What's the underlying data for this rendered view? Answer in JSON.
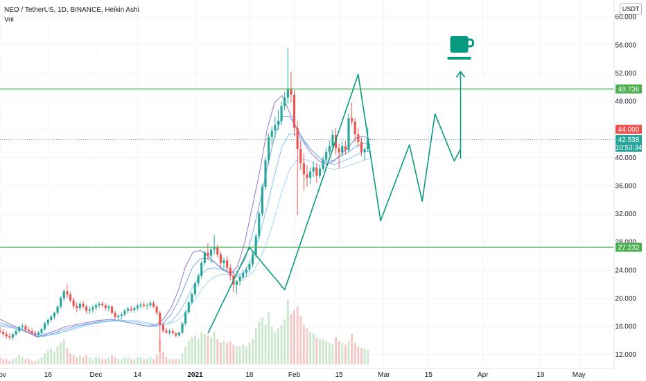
{
  "header": {
    "title": "NEO / TetherUS, 1D, BINANCE, Heikin Ashi",
    "indicator": "Vol",
    "currency": "USDT"
  },
  "price_tags": {
    "upper_level": "49.736",
    "lower_level": "27.232",
    "prev_close": "44.000",
    "last_price": "42.538",
    "countdown": "10:53:34"
  },
  "colors": {
    "up": "#26a69a",
    "down": "#ef5350",
    "level_line": "#4caf50",
    "pattern": "#089981",
    "ma": [
      "#7e57c2",
      "#5c8ee6",
      "#64b5f6",
      "#90caf9"
    ]
  },
  "chart_data": {
    "type": "line",
    "ylim": [
      10,
      61
    ],
    "y_ticks": [
      12,
      16,
      20,
      24,
      28,
      32,
      36,
      40,
      44,
      48,
      52,
      56,
      60
    ],
    "y_tick_labels": [
      "12.000",
      "16.000",
      "20.000",
      "24.000",
      "28.000",
      "32.000",
      "36.000",
      "40.000",
      "44.000",
      "48.000",
      "52.000",
      "56.000",
      "60.000"
    ],
    "x_tick_labels": [
      "Nov",
      "16",
      "Dec",
      "14",
      "2021",
      "18",
      "Feb",
      "15",
      "Mar",
      "15",
      "Apr",
      "19",
      "May"
    ],
    "x_tick_days": [
      0,
      15,
      30,
      43,
      61,
      78,
      92,
      106,
      120,
      134,
      151,
      169,
      181
    ],
    "x_day_range": [
      0,
      192
    ],
    "horizontal_levels": [
      49.736,
      27.232
    ],
    "current_price": 42.538,
    "pattern_line": [
      {
        "day": 65,
        "value": 15.0
      },
      {
        "day": 78,
        "value": 27.2
      },
      {
        "day": 89,
        "value": 21.2
      },
      {
        "day": 112,
        "value": 51.8
      },
      {
        "day": 119,
        "value": 31.0
      },
      {
        "day": 128,
        "value": 41.8
      },
      {
        "day": 132,
        "value": 33.8
      },
      {
        "day": 136,
        "value": 46.2
      },
      {
        "day": 142,
        "value": 39.5
      },
      {
        "day": 144,
        "value": 41.2
      }
    ],
    "target_arrow": {
      "day": 144,
      "from": 39.8,
      "to": 52.2
    },
    "ohlc": [
      [
        15.4,
        15.9,
        14.9,
        15.2
      ],
      [
        15.2,
        15.6,
        14.6,
        14.9
      ],
      [
        14.9,
        15.3,
        14.3,
        14.6
      ],
      [
        14.6,
        15.0,
        14.1,
        14.4
      ],
      [
        14.4,
        15.1,
        14.0,
        14.9
      ],
      [
        14.9,
        15.6,
        14.6,
        15.3
      ],
      [
        15.3,
        16.1,
        15.0,
        15.9
      ],
      [
        15.9,
        16.4,
        15.5,
        16.0
      ],
      [
        16.0,
        16.3,
        15.2,
        15.5
      ],
      [
        15.5,
        15.9,
        15.0,
        15.3
      ],
      [
        15.3,
        15.7,
        14.8,
        15.0
      ],
      [
        15.0,
        15.4,
        14.5,
        14.8
      ],
      [
        14.8,
        15.3,
        14.4,
        15.1
      ],
      [
        15.1,
        15.8,
        14.8,
        15.6
      ],
      [
        15.6,
        16.6,
        15.3,
        16.4
      ],
      [
        16.4,
        17.1,
        16.0,
        16.9
      ],
      [
        16.9,
        17.6,
        16.6,
        17.4
      ],
      [
        17.4,
        18.1,
        17.0,
        17.9
      ],
      [
        17.9,
        19.0,
        17.6,
        18.8
      ],
      [
        18.8,
        20.3,
        18.5,
        20.0
      ],
      [
        20.0,
        21.3,
        19.6,
        21.0
      ],
      [
        21.0,
        21.9,
        20.0,
        20.5
      ],
      [
        20.5,
        20.9,
        19.4,
        19.7
      ],
      [
        19.7,
        20.1,
        18.5,
        18.9
      ],
      [
        18.9,
        19.4,
        18.0,
        18.6
      ],
      [
        18.6,
        19.5,
        18.2,
        19.2
      ],
      [
        19.2,
        19.6,
        18.5,
        18.8
      ],
      [
        18.8,
        19.1,
        17.8,
        18.2
      ],
      [
        18.2,
        18.8,
        17.7,
        18.4
      ],
      [
        18.4,
        19.0,
        17.9,
        18.7
      ],
      [
        18.7,
        19.3,
        18.3,
        19.0
      ],
      [
        19.0,
        19.5,
        18.6,
        19.2
      ],
      [
        19.2,
        19.6,
        18.7,
        19.0
      ],
      [
        19.0,
        19.3,
        18.2,
        18.6
      ],
      [
        18.6,
        19.1,
        18.1,
        18.8
      ],
      [
        18.8,
        19.0,
        17.6,
        17.9
      ],
      [
        17.9,
        18.2,
        17.0,
        17.3
      ],
      [
        17.3,
        17.8,
        16.8,
        17.5
      ],
      [
        17.5,
        18.0,
        17.0,
        17.7
      ],
      [
        17.7,
        18.5,
        17.4,
        18.2
      ],
      [
        18.2,
        18.8,
        17.8,
        18.5
      ],
      [
        18.5,
        18.9,
        18.0,
        18.3
      ],
      [
        18.3,
        18.8,
        17.9,
        18.6
      ],
      [
        18.6,
        19.2,
        18.3,
        18.9
      ],
      [
        18.9,
        19.4,
        18.5,
        19.1
      ],
      [
        19.1,
        19.5,
        18.6,
        18.9
      ],
      [
        18.9,
        19.3,
        18.4,
        19.0
      ],
      [
        19.0,
        19.6,
        18.7,
        19.3
      ],
      [
        19.3,
        19.6,
        18.6,
        18.8
      ],
      [
        18.8,
        19.0,
        17.6,
        17.9
      ],
      [
        17.9,
        18.2,
        12.4,
        16.2
      ],
      [
        16.2,
        16.5,
        15.0,
        15.4
      ],
      [
        15.4,
        15.8,
        14.9,
        15.1
      ],
      [
        15.1,
        15.6,
        14.8,
        15.3
      ],
      [
        15.3,
        15.7,
        14.9,
        15.0
      ],
      [
        15.0,
        15.2,
        14.4,
        14.7
      ],
      [
        14.7,
        15.3,
        14.5,
        15.1
      ],
      [
        15.1,
        16.6,
        14.9,
        16.4
      ],
      [
        16.4,
        18.3,
        16.1,
        18.0
      ],
      [
        18.0,
        19.6,
        17.7,
        19.4
      ],
      [
        19.4,
        20.8,
        19.1,
        20.6
      ],
      [
        20.6,
        22.3,
        20.3,
        22.1
      ],
      [
        22.1,
        23.5,
        21.6,
        23.2
      ],
      [
        23.2,
        25.3,
        22.8,
        25.0
      ],
      [
        25.0,
        26.8,
        24.6,
        26.5
      ],
      [
        26.5,
        27.8,
        25.4,
        26.0
      ],
      [
        26.0,
        27.3,
        25.0,
        26.9
      ],
      [
        26.9,
        29.0,
        26.2,
        27.2
      ],
      [
        27.2,
        27.6,
        25.8,
        26.2
      ],
      [
        26.2,
        26.6,
        24.4,
        25.0
      ],
      [
        25.0,
        25.8,
        24.0,
        25.4
      ],
      [
        25.4,
        26.0,
        23.8,
        24.3
      ],
      [
        24.3,
        24.8,
        22.5,
        23.2
      ],
      [
        23.2,
        23.8,
        20.8,
        21.9
      ],
      [
        21.9,
        22.6,
        20.6,
        22.4
      ],
      [
        22.4,
        23.4,
        21.8,
        23.0
      ],
      [
        23.0,
        24.0,
        22.5,
        23.6
      ],
      [
        23.6,
        24.4,
        23.0,
        24.1
      ],
      [
        24.1,
        25.2,
        23.6,
        24.8
      ],
      [
        24.8,
        26.6,
        24.4,
        26.2
      ],
      [
        26.2,
        29.2,
        25.8,
        28.8
      ],
      [
        28.8,
        32.4,
        28.4,
        32.0
      ],
      [
        32.0,
        36.2,
        31.6,
        35.8
      ],
      [
        35.8,
        40.1,
        35.4,
        39.6
      ],
      [
        39.6,
        43.4,
        39.0,
        42.9
      ],
      [
        42.9,
        44.4,
        41.8,
        43.8
      ],
      [
        43.8,
        45.8,
        42.8,
        44.6
      ],
      [
        44.6,
        46.8,
        43.9,
        45.2
      ],
      [
        45.2,
        47.9,
        44.6,
        47.3
      ],
      [
        47.3,
        49.3,
        46.7,
        48.5
      ],
      [
        48.5,
        55.6,
        47.6,
        49.8
      ],
      [
        49.8,
        52.2,
        47.8,
        48.9
      ],
      [
        48.9,
        49.6,
        43.0,
        44.2
      ],
      [
        44.2,
        45.2,
        31.8,
        41.2
      ],
      [
        41.2,
        42.4,
        38.2,
        39.2
      ],
      [
        39.2,
        40.6,
        35.2,
        37.6
      ],
      [
        37.6,
        38.9,
        35.8,
        37.1
      ],
      [
        37.1,
        38.6,
        36.2,
        38.0
      ],
      [
        38.0,
        39.4,
        37.2,
        38.6
      ],
      [
        38.6,
        39.2,
        36.4,
        37.4
      ],
      [
        37.4,
        38.9,
        37.0,
        38.4
      ],
      [
        38.4,
        40.2,
        38.0,
        39.7
      ],
      [
        39.7,
        41.4,
        39.2,
        40.8
      ],
      [
        40.8,
        42.4,
        40.3,
        41.6
      ],
      [
        41.6,
        43.9,
        41.2,
        43.2
      ],
      [
        43.2,
        44.2,
        40.4,
        41.3
      ],
      [
        41.3,
        41.9,
        38.4,
        40.7
      ],
      [
        40.7,
        42.3,
        40.2,
        41.6
      ],
      [
        41.6,
        42.4,
        40.4,
        41.1
      ],
      [
        41.1,
        46.3,
        40.7,
        45.6
      ],
      [
        45.6,
        47.8,
        44.6,
        45.1
      ],
      [
        45.1,
        45.6,
        42.2,
        43.3
      ],
      [
        43.3,
        44.2,
        41.4,
        42.2
      ],
      [
        42.2,
        42.8,
        40.2,
        40.8
      ],
      [
        40.8,
        41.4,
        39.6,
        41.2
      ],
      [
        41.2,
        44.3,
        40.8,
        42.538
      ]
    ],
    "ma_series": [
      {
        "values": [
          17.0,
          16.5,
          16.0,
          15.5,
          15.0,
          14.5,
          14.8,
          15.2,
          15.6,
          16.0,
          16.2,
          16.4,
          16.6,
          16.8,
          16.9,
          17.0,
          16.8,
          16.6,
          16.4,
          16.2,
          16.0,
          16.2,
          17.0,
          18.5,
          21.0,
          24.5,
          26.5,
          26.8,
          26.0,
          25.0,
          24.0,
          23.5,
          24.5,
          28.0,
          33.0,
          38.0,
          44.0,
          47.8,
          48.8,
          46.5,
          44.0,
          42.0,
          40.5,
          39.5,
          39.0,
          39.5,
          40.5,
          41.5,
          42.8,
          43.0,
          42.5
        ]
      },
      {
        "values": [
          16.5,
          16.2,
          15.8,
          15.4,
          15.0,
          14.6,
          14.6,
          14.9,
          15.3,
          15.7,
          16.0,
          16.2,
          16.4,
          16.6,
          16.7,
          16.8,
          16.8,
          16.6,
          16.4,
          16.2,
          16.0,
          16.0,
          16.5,
          17.6,
          19.5,
          22.0,
          24.5,
          25.6,
          25.6,
          25.0,
          24.2,
          23.6,
          23.8,
          25.5,
          29.0,
          33.5,
          38.5,
          43.0,
          45.8,
          45.8,
          44.2,
          42.4,
          41.0,
          40.0,
          39.4,
          39.6,
          40.2,
          40.8,
          41.6,
          42.0,
          41.8
        ]
      },
      {
        "values": [
          16.2,
          16.0,
          15.7,
          15.4,
          15.1,
          14.8,
          14.7,
          14.8,
          15.0,
          15.4,
          15.8,
          16.1,
          16.3,
          16.5,
          16.7,
          16.8,
          16.9,
          16.8,
          16.7,
          16.5,
          16.3,
          16.2,
          16.2,
          16.6,
          17.8,
          19.5,
          21.6,
          23.4,
          24.2,
          24.3,
          24.0,
          23.6,
          23.2,
          23.8,
          25.8,
          29.0,
          33.0,
          37.5,
          41.5,
          43.4,
          43.2,
          42.2,
          41.0,
          40.0,
          39.2,
          39.0,
          39.4,
          39.8,
          40.4,
          40.8,
          40.9
        ]
      },
      {
        "values": [
          16.0,
          15.9,
          15.7,
          15.5,
          15.3,
          15.1,
          15.0,
          15.0,
          15.1,
          15.3,
          15.6,
          15.9,
          16.2,
          16.4,
          16.6,
          16.7,
          16.8,
          16.8,
          16.8,
          16.7,
          16.5,
          16.4,
          16.3,
          16.4,
          16.9,
          17.9,
          19.4,
          21.0,
          22.3,
          23.1,
          23.4,
          23.3,
          23.0,
          22.9,
          23.6,
          25.4,
          28.0,
          31.4,
          35.2,
          38.2,
          39.6,
          39.8,
          39.4,
          38.9,
          38.5,
          38.3,
          38.5,
          38.8,
          39.2,
          39.6,
          39.9
        ]
      }
    ],
    "volume": [
      4,
      3,
      3,
      2,
      3,
      4,
      5,
      4,
      3,
      3,
      2,
      2,
      3,
      4,
      6,
      8,
      9,
      7,
      10,
      12,
      14,
      9,
      6,
      5,
      4,
      5,
      4,
      5,
      4,
      3,
      4,
      4,
      3,
      3,
      4,
      5,
      4,
      3,
      3,
      4,
      4,
      3,
      3,
      4,
      4,
      3,
      3,
      4,
      3,
      5,
      14,
      7,
      4,
      3,
      3,
      3,
      3,
      6,
      10,
      13,
      15,
      16,
      14,
      18,
      17,
      16,
      15,
      18,
      14,
      12,
      13,
      12,
      13,
      11,
      10,
      10,
      11,
      10,
      12,
      14,
      20,
      24,
      26,
      22,
      29,
      21,
      18,
      20,
      22,
      25,
      36,
      28,
      30,
      32,
      27,
      22,
      20,
      18,
      17,
      15,
      14,
      14,
      13,
      12,
      11,
      15,
      13,
      12,
      11,
      13,
      17,
      12,
      10,
      9,
      9,
      8
    ]
  }
}
